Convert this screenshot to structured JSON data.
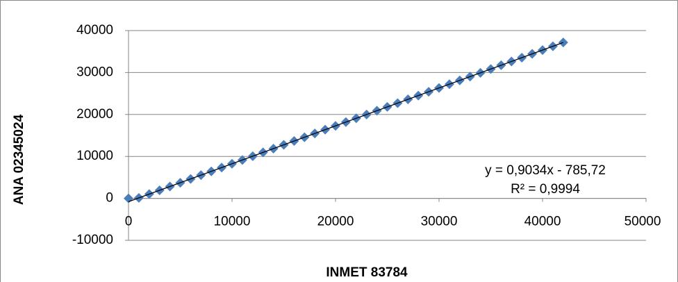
{
  "chart_data": {
    "type": "scatter",
    "xlabel": "INMET 83784",
    "ylabel": "ANA 02345024",
    "x": [
      0,
      1000,
      2000,
      3000,
      4000,
      5000,
      6000,
      7000,
      8000,
      9000,
      10000,
      11000,
      12000,
      13000,
      14000,
      15000,
      16000,
      17000,
      18000,
      19000,
      20000,
      21000,
      22000,
      23000,
      24000,
      25000,
      26000,
      27000,
      28000,
      29000,
      30000,
      31000,
      32000,
      33000,
      34000,
      35000,
      36000,
      37000,
      38000,
      39000,
      40000,
      41000,
      42000
    ],
    "values": [
      0,
      117,
      1021,
      1924,
      2828,
      3731,
      4634,
      5538,
      6441,
      7345,
      8248,
      9151,
      10055,
      10958,
      11862,
      12765,
      13668,
      14572,
      15475,
      16379,
      17282,
      18185,
      19089,
      19992,
      20896,
      21799,
      22702,
      23606,
      24509,
      25413,
      26316,
      27219,
      28123,
      29026,
      29930,
      30833,
      31736,
      32640,
      33543,
      34447,
      35350,
      36253,
      37157
    ],
    "color": "#4a7ebb",
    "xlim": [
      0,
      50000
    ],
    "xticks": [
      0,
      10000,
      20000,
      30000,
      40000,
      50000
    ],
    "ylim": [
      -10000,
      40000
    ],
    "yticks": [
      -10000,
      0,
      10000,
      20000,
      30000,
      40000
    ],
    "grid": true,
    "trendline": {
      "slope": 0.9034,
      "intercept": -785.72,
      "color": "#000000",
      "equation": "y = 0,9034x - 785,72",
      "r2": "R² = 0,9994"
    }
  }
}
